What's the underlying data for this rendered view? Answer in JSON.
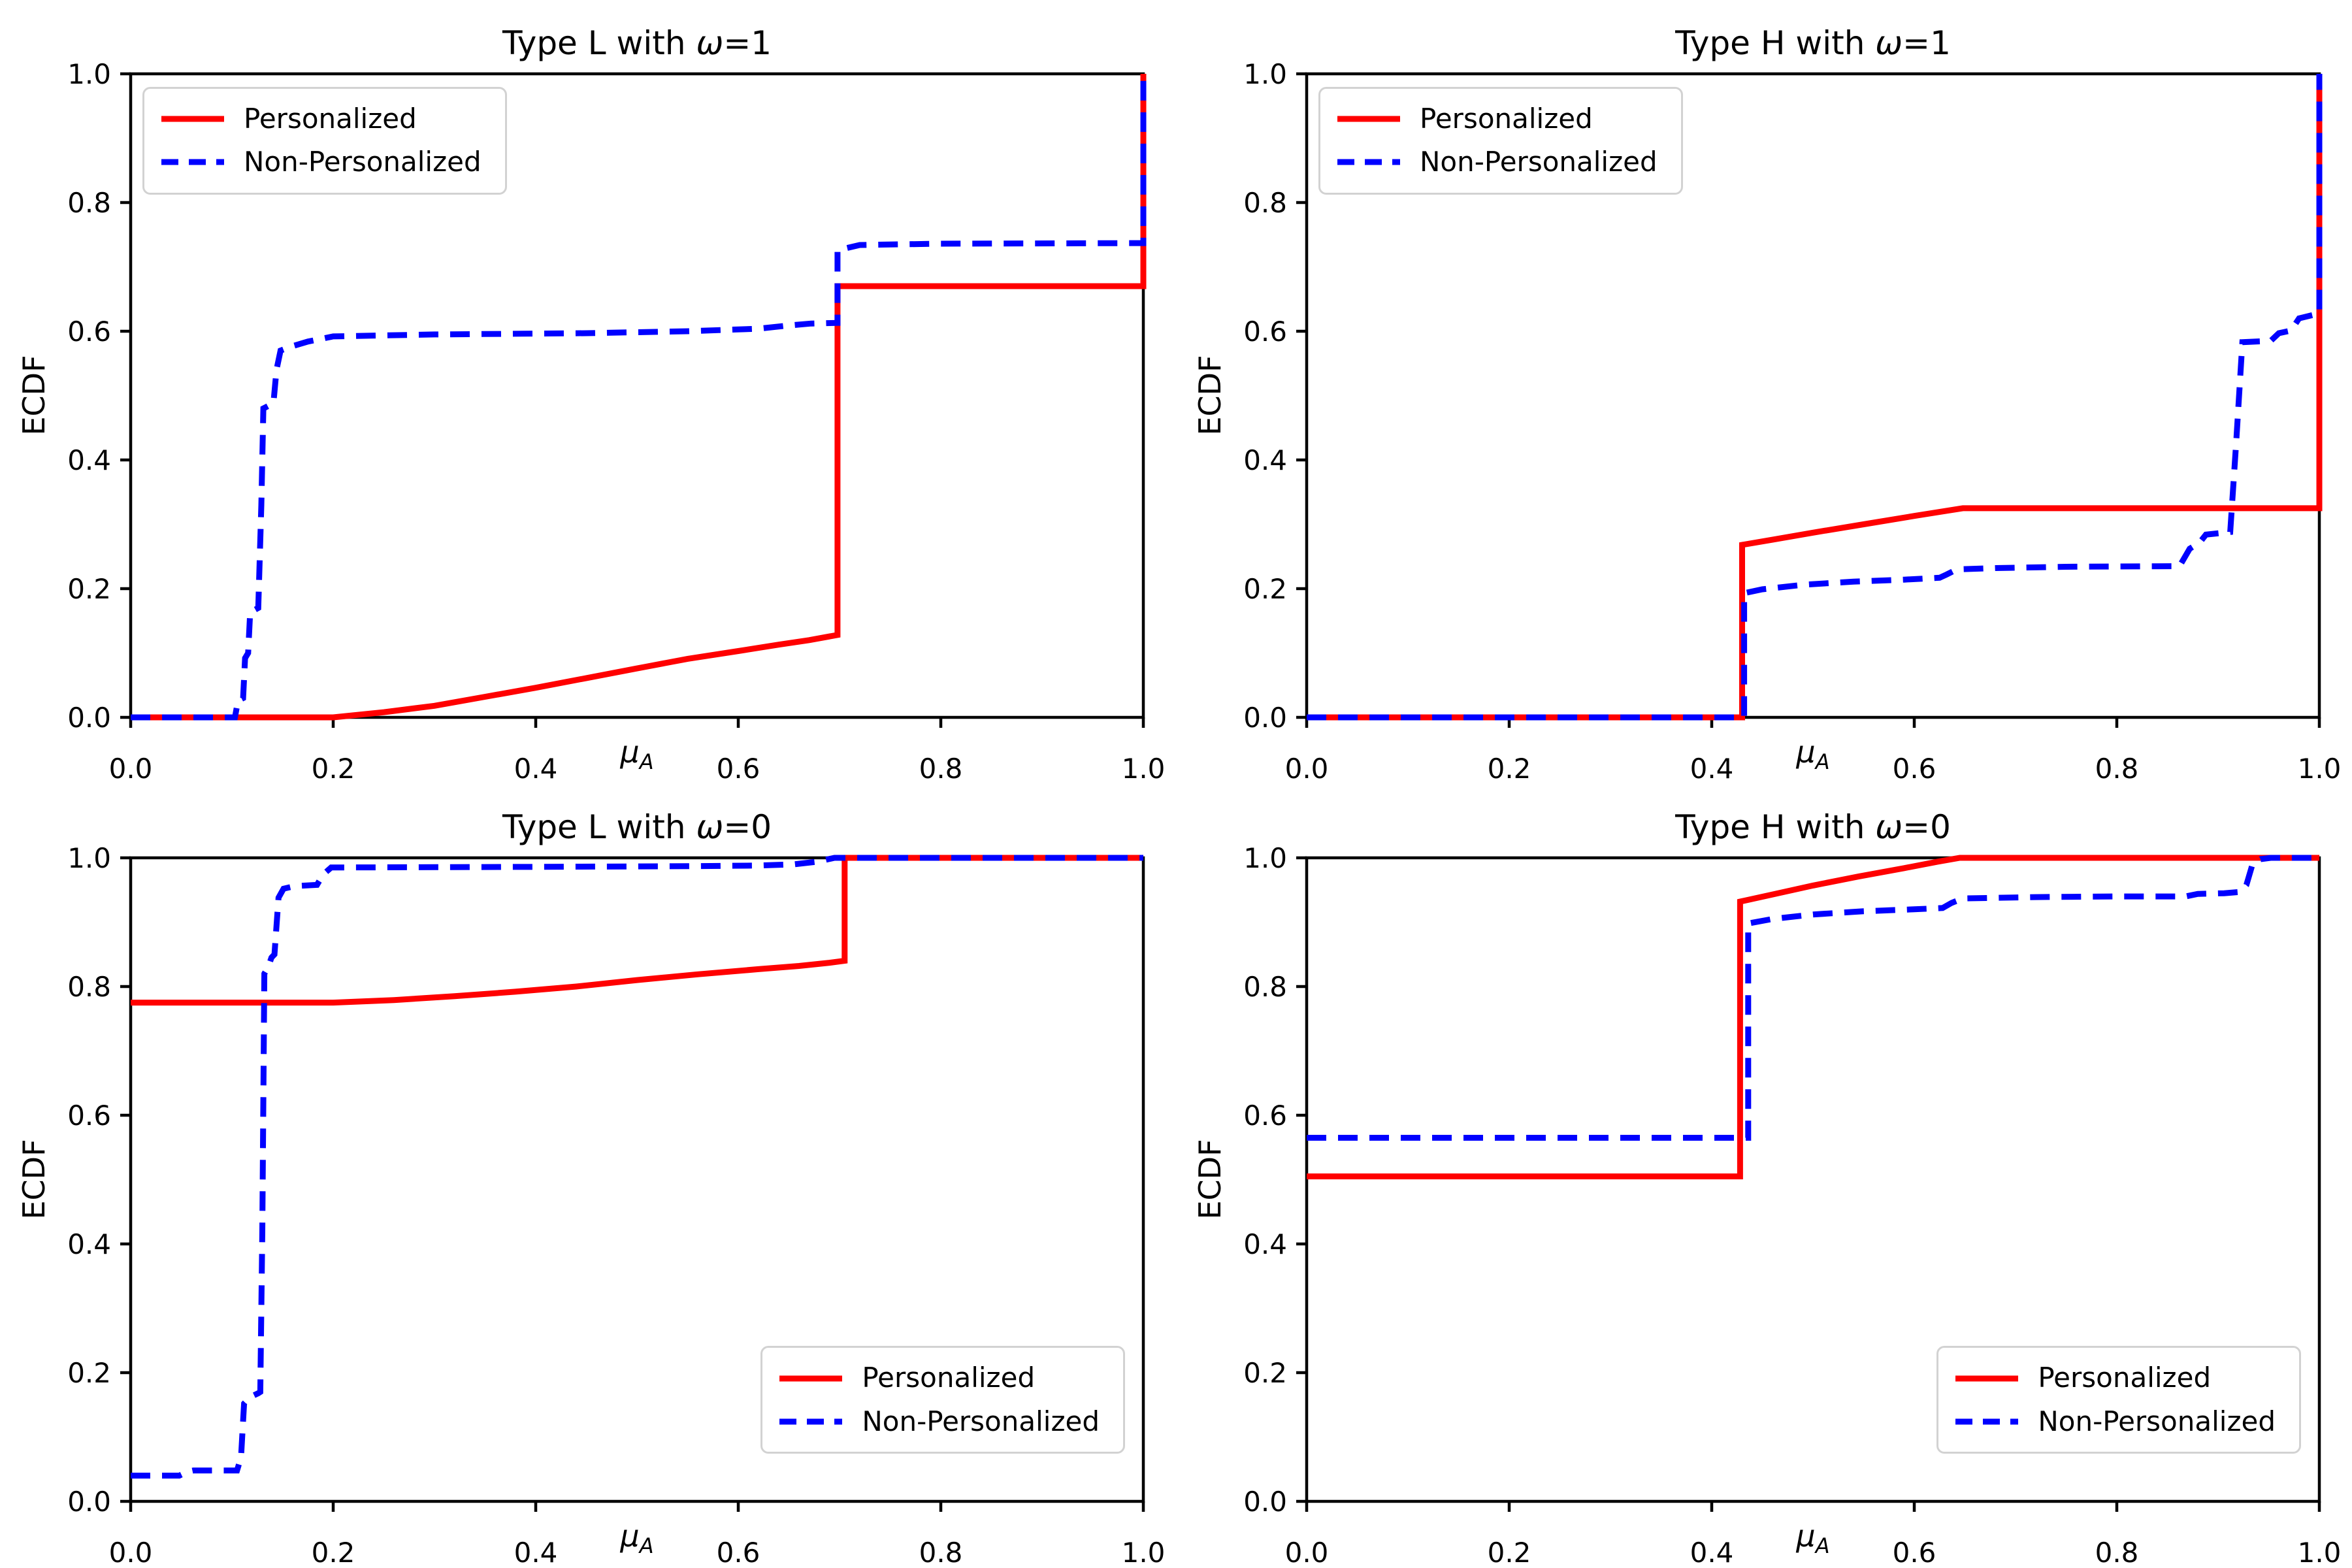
{
  "figure": {
    "background": "#ffffff"
  },
  "colors": {
    "personalized": "#ff0000",
    "non_personalized": "#0000ff",
    "axis": "#000000",
    "legend_border": "#d2d2d2"
  },
  "axis": {
    "xtick_values": [
      0,
      0.2,
      0.4,
      0.6,
      0.8,
      1.0
    ],
    "xtick_labels": [
      "0.0",
      "0.2",
      "0.4",
      "0.6",
      "0.8",
      "1.0"
    ],
    "ytick_values": [
      0,
      0.2,
      0.4,
      0.6,
      0.8,
      1.0
    ],
    "ytick_labels": [
      "0.0",
      "0.2",
      "0.4",
      "0.6",
      "0.8",
      "1.0"
    ]
  },
  "chart_data": [
    {
      "type": "line",
      "title": "Type L with ω=1",
      "title_parts": {
        "prefix": "Type L with ",
        "omega": "ω",
        "suffix": "=1"
      },
      "xlabel": "μ_A",
      "xlabel_parts": {
        "mu": "μ",
        "sub": "A"
      },
      "ylabel": "ECDF",
      "xlim": [
        0,
        1
      ],
      "ylim": [
        0,
        1
      ],
      "grid": false,
      "legend_position": "upper-left",
      "series": [
        {
          "name": "Personalized",
          "color": "#ff0000",
          "linestyle": "solid",
          "points": [
            [
              0,
              0
            ],
            [
              0.2,
              0
            ],
            [
              0.25,
              0.008
            ],
            [
              0.3,
              0.018
            ],
            [
              0.35,
              0.032
            ],
            [
              0.4,
              0.046
            ],
            [
              0.45,
              0.061
            ],
            [
              0.5,
              0.076
            ],
            [
              0.55,
              0.091
            ],
            [
              0.6,
              0.103
            ],
            [
              0.64,
              0.113
            ],
            [
              0.67,
              0.12
            ],
            [
              0.698,
              0.128
            ],
            [
              0.698,
              0.67
            ],
            [
              1.0,
              0.67
            ],
            [
              1.0,
              1.0
            ]
          ]
        },
        {
          "name": "Non-Personalized",
          "color": "#0000ff",
          "linestyle": "dashed",
          "points": [
            [
              0,
              0
            ],
            [
              0.103,
              0
            ],
            [
              0.106,
              0.026
            ],
            [
              0.111,
              0.03
            ],
            [
              0.113,
              0.092
            ],
            [
              0.116,
              0.1
            ],
            [
              0.118,
              0.163
            ],
            [
              0.126,
              0.17
            ],
            [
              0.129,
              0.33
            ],
            [
              0.131,
              0.48
            ],
            [
              0.141,
              0.488
            ],
            [
              0.144,
              0.54
            ],
            [
              0.148,
              0.57
            ],
            [
              0.158,
              0.576
            ],
            [
              0.175,
              0.584
            ],
            [
              0.2,
              0.592
            ],
            [
              0.3,
              0.595
            ],
            [
              0.45,
              0.597
            ],
            [
              0.55,
              0.6
            ],
            [
              0.62,
              0.604
            ],
            [
              0.65,
              0.609
            ],
            [
              0.672,
              0.612
            ],
            [
              0.698,
              0.613
            ],
            [
              0.698,
              0.726
            ],
            [
              0.72,
              0.734
            ],
            [
              0.8,
              0.736
            ],
            [
              1.0,
              0.737
            ],
            [
              1.0,
              1.0
            ]
          ]
        }
      ]
    },
    {
      "type": "line",
      "title": "Type H with ω=1",
      "title_parts": {
        "prefix": "Type H with ",
        "omega": "ω",
        "suffix": "=1"
      },
      "xlabel": "μ_A",
      "xlabel_parts": {
        "mu": "μ",
        "sub": "A"
      },
      "ylabel": "ECDF",
      "xlim": [
        0,
        1
      ],
      "ylim": [
        0,
        1
      ],
      "grid": false,
      "legend_position": "upper-left",
      "series": [
        {
          "name": "Personalized",
          "color": "#ff0000",
          "linestyle": "solid",
          "points": [
            [
              0,
              0
            ],
            [
              0.43,
              0
            ],
            [
              0.43,
              0.268
            ],
            [
              0.46,
              0.276
            ],
            [
              0.5,
              0.287
            ],
            [
              0.55,
              0.3
            ],
            [
              0.6,
              0.313
            ],
            [
              0.628,
              0.32
            ],
            [
              0.648,
              0.325
            ],
            [
              1.0,
              0.325
            ],
            [
              1.0,
              1.0
            ]
          ]
        },
        {
          "name": "Non-Personalized",
          "color": "#0000ff",
          "linestyle": "dashed",
          "points": [
            [
              0,
              0
            ],
            [
              0.432,
              0
            ],
            [
              0.432,
              0.193
            ],
            [
              0.45,
              0.199
            ],
            [
              0.49,
              0.206
            ],
            [
              0.54,
              0.211
            ],
            [
              0.59,
              0.214
            ],
            [
              0.625,
              0.217
            ],
            [
              0.632,
              0.222
            ],
            [
              0.642,
              0.23
            ],
            [
              0.68,
              0.232
            ],
            [
              0.75,
              0.234
            ],
            [
              0.862,
              0.235
            ],
            [
              0.872,
              0.262
            ],
            [
              0.882,
              0.272
            ],
            [
              0.888,
              0.284
            ],
            [
              0.912,
              0.288
            ],
            [
              0.918,
              0.43
            ],
            [
              0.924,
              0.583
            ],
            [
              0.952,
              0.585
            ],
            [
              0.96,
              0.597
            ],
            [
              0.972,
              0.601
            ],
            [
              0.98,
              0.62
            ],
            [
              0.993,
              0.625
            ],
            [
              1.0,
              0.627
            ],
            [
              1.0,
              1.0
            ]
          ]
        }
      ]
    },
    {
      "type": "line",
      "title": "Type L with ω=0",
      "title_parts": {
        "prefix": "Type L with ",
        "omega": "ω",
        "suffix": "=0"
      },
      "xlabel": "μ_A",
      "xlabel_parts": {
        "mu": "μ",
        "sub": "A"
      },
      "ylabel": "ECDF",
      "xlim": [
        0,
        1
      ],
      "ylim": [
        0,
        1
      ],
      "grid": false,
      "legend_position": "lower-right",
      "series": [
        {
          "name": "Personalized",
          "color": "#ff0000",
          "linestyle": "solid",
          "points": [
            [
              0,
              0.775
            ],
            [
              0.2,
              0.775
            ],
            [
              0.26,
              0.779
            ],
            [
              0.32,
              0.785
            ],
            [
              0.38,
              0.792
            ],
            [
              0.44,
              0.8
            ],
            [
              0.5,
              0.81
            ],
            [
              0.56,
              0.819
            ],
            [
              0.62,
              0.827
            ],
            [
              0.66,
              0.832
            ],
            [
              0.69,
              0.837
            ],
            [
              0.705,
              0.84
            ],
            [
              0.705,
              1.0
            ],
            [
              1.0,
              1.0
            ]
          ]
        },
        {
          "name": "Non-Personalized",
          "color": "#0000ff",
          "linestyle": "dashed",
          "points": [
            [
              0,
              0.04
            ],
            [
              0.048,
              0.04
            ],
            [
              0.056,
              0.046
            ],
            [
              0.062,
              0.048
            ],
            [
              0.105,
              0.048
            ],
            [
              0.109,
              0.068
            ],
            [
              0.112,
              0.152
            ],
            [
              0.118,
              0.162
            ],
            [
              0.126,
              0.168
            ],
            [
              0.128,
              0.17
            ],
            [
              0.13,
              0.42
            ],
            [
              0.132,
              0.82
            ],
            [
              0.136,
              0.831
            ],
            [
              0.139,
              0.845
            ],
            [
              0.142,
              0.85
            ],
            [
              0.146,
              0.938
            ],
            [
              0.151,
              0.952
            ],
            [
              0.162,
              0.956
            ],
            [
              0.184,
              0.958
            ],
            [
              0.19,
              0.974
            ],
            [
              0.198,
              0.985
            ],
            [
              0.4,
              0.986
            ],
            [
              0.55,
              0.987
            ],
            [
              0.62,
              0.988
            ],
            [
              0.655,
              0.99
            ],
            [
              0.678,
              0.994
            ],
            [
              0.695,
              1.0
            ],
            [
              1.0,
              1.0
            ]
          ]
        }
      ]
    },
    {
      "type": "line",
      "title": "Type H with ω=0",
      "title_parts": {
        "prefix": "Type H with ",
        "omega": "ω",
        "suffix": "=0"
      },
      "xlabel": "μ_A",
      "xlabel_parts": {
        "mu": "μ",
        "sub": "A"
      },
      "ylabel": "ECDF",
      "xlim": [
        0,
        1
      ],
      "ylim": [
        0,
        1
      ],
      "grid": false,
      "legend_position": "lower-right",
      "series": [
        {
          "name": "Personalized",
          "color": "#ff0000",
          "linestyle": "solid",
          "points": [
            [
              0,
              0.505
            ],
            [
              0.428,
              0.505
            ],
            [
              0.428,
              0.932
            ],
            [
              0.46,
              0.943
            ],
            [
              0.5,
              0.957
            ],
            [
              0.545,
              0.971
            ],
            [
              0.59,
              0.984
            ],
            [
              0.623,
              0.994
            ],
            [
              0.645,
              1.0
            ],
            [
              1.0,
              1.0
            ]
          ]
        },
        {
          "name": "Non-Personalized",
          "color": "#0000ff",
          "linestyle": "dashed",
          "points": [
            [
              0,
              0.565
            ],
            [
              0.436,
              0.565
            ],
            [
              0.436,
              0.898
            ],
            [
              0.46,
              0.905
            ],
            [
              0.5,
              0.912
            ],
            [
              0.55,
              0.917
            ],
            [
              0.6,
              0.92
            ],
            [
              0.628,
              0.922
            ],
            [
              0.637,
              0.93
            ],
            [
              0.648,
              0.937
            ],
            [
              0.72,
              0.939
            ],
            [
              0.8,
              0.94
            ],
            [
              0.868,
              0.94
            ],
            [
              0.88,
              0.944
            ],
            [
              0.906,
              0.945
            ],
            [
              0.922,
              0.947
            ],
            [
              0.928,
              0.958
            ],
            [
              0.934,
              0.99
            ],
            [
              0.942,
              0.998
            ],
            [
              0.952,
              1.0
            ],
            [
              1.0,
              1.0
            ]
          ]
        }
      ]
    }
  ]
}
